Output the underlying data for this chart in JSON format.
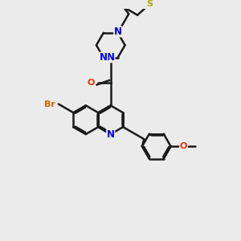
{
  "bg_color": "#ebebeb",
  "bond_color": "#1a1a1a",
  "bond_width": 1.8,
  "atom_colors": {
    "N": "#0000ee",
    "O": "#ee3300",
    "Br": "#cc6600",
    "S": "#aaaa00"
  },
  "font_size": 8.5,
  "fig_size": [
    3.0,
    3.0
  ],
  "dpi": 100
}
